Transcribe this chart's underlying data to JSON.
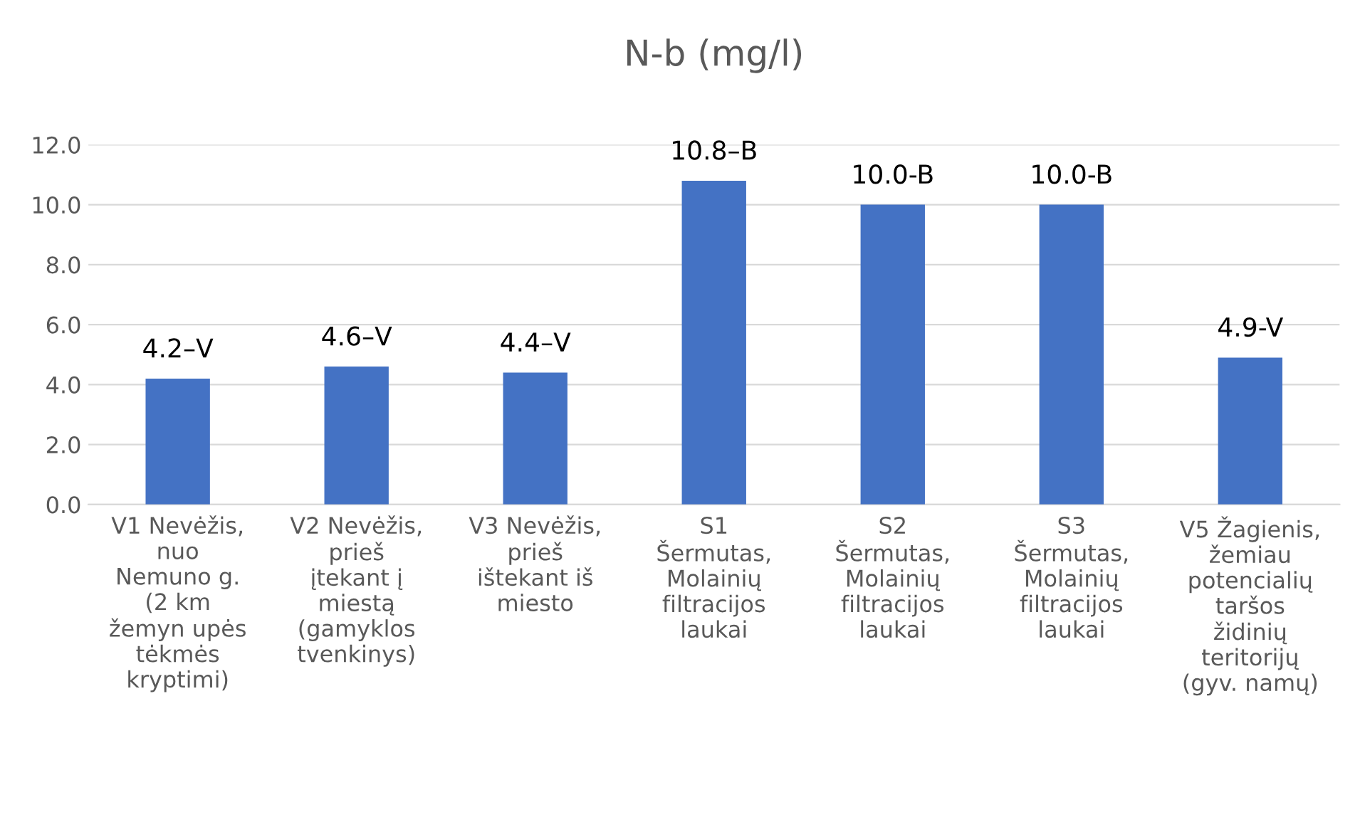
{
  "chart_data": {
    "type": "bar",
    "title": "N-b (mg/l)",
    "categories": [
      "V1 Nevėžis,\nnuo\nNemuno g.\n(2 km\nžemyn upės\ntėkmės\nkryptimi)",
      "V2 Nevėžis,\nprieš\nįtekant į\nmiestą\n(gamyklos\ntvenkinys)",
      "V3 Nevėžis,\nprieš\ništekant iš\nmiesto",
      "S1\nŠermutas,\nMolainių\nfiltracijos\nlaukai",
      "S2\nŠermutas,\nMolainių\nfiltracijos\nlaukai",
      "S3\nŠermutas,\nMolainių\nfiltracijos\nlaukai",
      "V5 Žagienis,\nžemiau\npotencialių\ntaršos\nžidinių\nteritorijų\n(gyv. namų)"
    ],
    "values": [
      4.2,
      4.6,
      4.4,
      10.8,
      10.0,
      10.0,
      4.9
    ],
    "value_labels": [
      "4.2–V",
      "4.6–V",
      "4.4–V",
      "10.8–B",
      "10.0-B",
      "10.0-B",
      "4.9-V"
    ],
    "color": "#4472c4",
    "ylim": [
      0,
      12
    ],
    "yticks": [
      {
        "value": 0,
        "label": "0.0"
      },
      {
        "value": 2,
        "label": "2.0"
      },
      {
        "value": 4,
        "label": "4.0"
      },
      {
        "value": 6,
        "label": "6.0"
      },
      {
        "value": 8,
        "label": "8.0"
      },
      {
        "value": 10,
        "label": "10.0"
      },
      {
        "value": 12,
        "label": "12.0"
      }
    ],
    "grid": "y"
  }
}
